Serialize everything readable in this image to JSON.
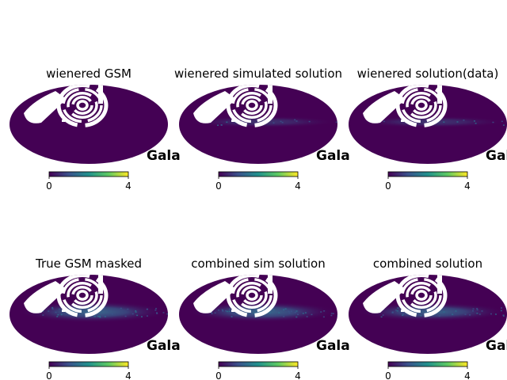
{
  "chart_data": [
    {
      "type": "heatmap",
      "title": "wienered GSM",
      "projection": "mollweide",
      "colormap": "viridis",
      "colorbar": {
        "vmin": 0,
        "vmax": 4,
        "ticks": [
          "0",
          "4"
        ]
      },
      "coord_label": "Gala",
      "masked_region": "white (hatched/galactic mask)",
      "structure": "diffuse",
      "plane_intensity": 0.0
    },
    {
      "type": "heatmap",
      "title": "wienered simulated solution",
      "projection": "mollweide",
      "colormap": "viridis",
      "colorbar": {
        "vmin": 0,
        "vmax": 4,
        "ticks": [
          "0",
          "4"
        ]
      },
      "coord_label": "Gala",
      "structure": "diffuse",
      "plane_intensity": 0.25
    },
    {
      "type": "heatmap",
      "title": "wienered solution(data)",
      "projection": "mollweide",
      "colormap": "viridis",
      "colorbar": {
        "vmin": 0,
        "vmax": 4,
        "ticks": [
          "0",
          "4"
        ]
      },
      "coord_label": "Gala",
      "structure": "diffuse",
      "plane_intensity": 0.25
    },
    {
      "type": "heatmap",
      "title": "True GSM masked",
      "projection": "mollweide",
      "colormap": "viridis",
      "colorbar": {
        "vmin": 0,
        "vmax": 4,
        "ticks": [
          "0",
          "4"
        ]
      },
      "coord_label": "Gala",
      "structure": "galactic plane",
      "plane_intensity": 0.85
    },
    {
      "type": "heatmap",
      "title": "combined sim solution",
      "projection": "mollweide",
      "colormap": "viridis",
      "colorbar": {
        "vmin": 0,
        "vmax": 4,
        "ticks": [
          "0",
          "4"
        ]
      },
      "coord_label": "Gala",
      "structure": "galactic plane",
      "plane_intensity": 0.8
    },
    {
      "type": "heatmap",
      "title": "combined solution",
      "projection": "mollweide",
      "colormap": "viridis",
      "colorbar": {
        "vmin": 0,
        "vmax": 4,
        "ticks": [
          "0",
          "4"
        ]
      },
      "coord_label": "Gala",
      "structure": "galactic plane",
      "plane_intensity": 0.7
    }
  ],
  "colors": {
    "background_map": "#440154",
    "cmap_stops": [
      "#440154",
      "#3b528b",
      "#21918c",
      "#5ec962",
      "#fde725"
    ],
    "mask": "#ffffff"
  }
}
